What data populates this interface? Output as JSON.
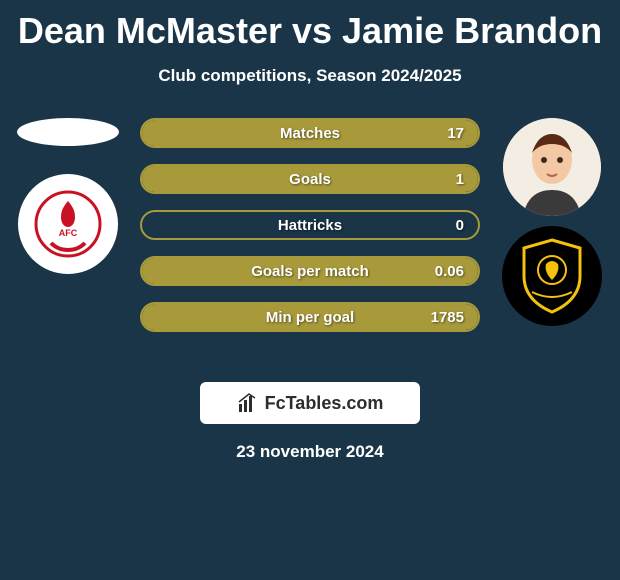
{
  "title": "Dean McMaster vs Jamie Brandon",
  "subtitle": "Club competitions, Season 2024/2025",
  "date": "23 november 2024",
  "brand": "FcTables.com",
  "colors": {
    "background": "#1a3548",
    "bar_border": "#a89a3a",
    "bar_fill": "#a89a3a",
    "text": "#ffffff",
    "logo_box_bg": "#ffffff",
    "logo_text": "#2d2d2d"
  },
  "left_side": {
    "player_avatar": "left-player-silhouette",
    "club_crest": "airdrieonians-crest",
    "club_crest_colors": {
      "red": "#c81224",
      "white": "#ffffff"
    }
  },
  "right_side": {
    "player_avatar": "right-player-headshot",
    "club_crest": "livingston-crest",
    "club_crest_colors": {
      "black": "#000000",
      "yellow": "#f4c20d"
    }
  },
  "stats": [
    {
      "label": "Matches",
      "left_value": "",
      "right_value": "17",
      "left_fill_pct": 0,
      "right_fill_pct": 100
    },
    {
      "label": "Goals",
      "left_value": "",
      "right_value": "1",
      "left_fill_pct": 0,
      "right_fill_pct": 100
    },
    {
      "label": "Hattricks",
      "left_value": "",
      "right_value": "0",
      "left_fill_pct": 0,
      "right_fill_pct": 0
    },
    {
      "label": "Goals per match",
      "left_value": "",
      "right_value": "0.06",
      "left_fill_pct": 0,
      "right_fill_pct": 100
    },
    {
      "label": "Min per goal",
      "left_value": "",
      "right_value": "1785",
      "left_fill_pct": 0,
      "right_fill_pct": 100
    }
  ]
}
